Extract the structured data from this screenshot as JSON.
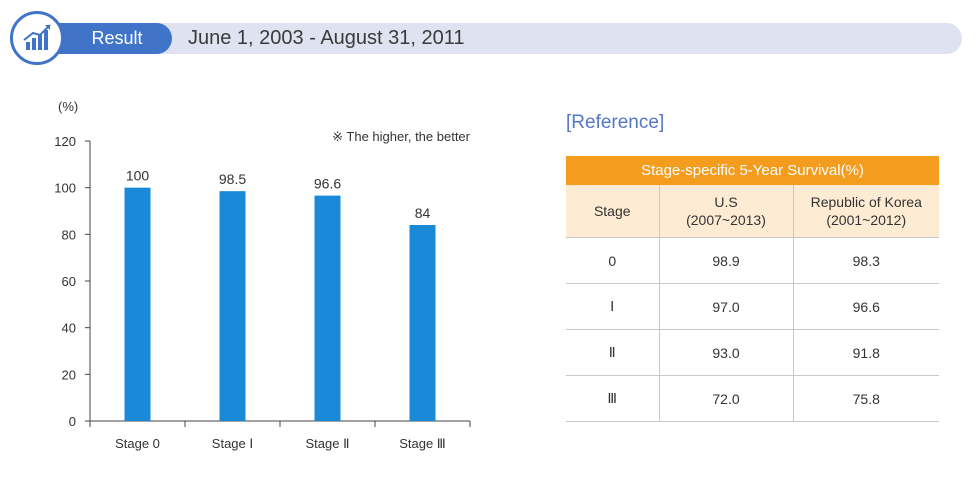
{
  "header": {
    "label": "Result",
    "date_range": "June 1, 2003 - August 31, 2011"
  },
  "chart_data": {
    "type": "bar",
    "ylabel": "(%)",
    "note": "※ The higher, the better",
    "categories": [
      "Stage 0",
      "Stage Ⅰ",
      "Stage Ⅱ",
      "Stage Ⅲ"
    ],
    "values": [
      100,
      98.5,
      96.6,
      84
    ],
    "value_labels": [
      "100",
      "98.5",
      "96.6",
      "84"
    ],
    "ylim": [
      0,
      120
    ],
    "yticks": [
      0,
      20,
      40,
      60,
      80,
      100,
      120
    ],
    "bar_color": "#1a8ad8",
    "grid": false,
    "legend": "none"
  },
  "reference": {
    "title": "[Reference]",
    "caption": "Stage-specific 5-Year Survival(%)",
    "headers": {
      "stage": "Stage",
      "us_line1": "U.S",
      "us_line2": "(2007~2013)",
      "korea_line1": "Republic of Korea",
      "korea_line2": "(2001~2012)"
    },
    "rows": [
      {
        "stage": "0",
        "us": "98.9",
        "korea": "98.3"
      },
      {
        "stage": "Ⅰ",
        "us": "97.0",
        "korea": "96.6"
      },
      {
        "stage": "Ⅱ",
        "us": "93.0",
        "korea": "91.8"
      },
      {
        "stage": "Ⅲ",
        "us": "72.0",
        "korea": "75.8"
      }
    ]
  }
}
